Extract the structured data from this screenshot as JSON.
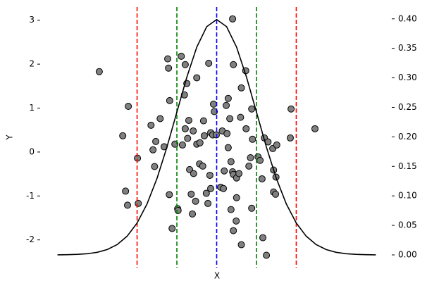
{
  "chart_data": {
    "type": "scatter",
    "xlabel": "X",
    "ylabel": "Y",
    "xlim": [
      -4.4,
      4.4
    ],
    "ylim": [
      -2.63,
      3.3
    ],
    "yticks": [
      -2,
      -1,
      0,
      1,
      2,
      3
    ],
    "y2lim": [
      -0.0215,
      0.42
    ],
    "y2ticks": [
      {
        "value": 0,
        "label": "0.00"
      },
      {
        "value": 0.05,
        "label": "0.05"
      },
      {
        "value": 0.1,
        "label": "0.10"
      },
      {
        "value": 0.15,
        "label": "0.15"
      },
      {
        "value": 0.2,
        "label": "0.20"
      },
      {
        "value": 0.25,
        "label": "0.25"
      },
      {
        "value": 0.3,
        "label": "0.30"
      },
      {
        "value": 0.35,
        "label": "0.35"
      },
      {
        "value": 0.4,
        "label": "0.40"
      }
    ],
    "series": [
      {
        "type": "scatter",
        "color": "#808080",
        "edgecolor": "#000000",
        "x": [
          -2.95,
          -2.22,
          -2.36,
          -1.99,
          -2.29,
          -2.24,
          -1.97,
          -1.65,
          -1.53,
          -1.6,
          -1.42,
          -1.56,
          -1.32,
          -1.23,
          -1.21,
          -1.18,
          -1.19,
          -1.12,
          -0.98,
          -0.97,
          -1.05,
          -0.89,
          -0.79,
          -0.75,
          -0.81,
          -0.86,
          -0.79,
          -0.7,
          -0.73,
          -0.59,
          -0.5,
          -0.68,
          -0.58,
          -0.64,
          -0.53,
          -0.61,
          -0.5,
          -0.43,
          -0.35,
          -0.33,
          -0.31,
          -0.42,
          -0.2,
          -0.15,
          -0.08,
          -0.06,
          -0.17,
          -0.15,
          -0.26,
          -0.22,
          -0.1,
          -0.01,
          0.1,
          0.19,
          0.17,
          0.14,
          0.26,
          0.24,
          0.29,
          0.29,
          0.33,
          0.36,
          0.4,
          0.42,
          0.4,
          0.42,
          0.5,
          0.56,
          0.5,
          0.36,
          0.49,
          0.42,
          0.62,
          0.62,
          0.73,
          0.6,
          0.74,
          0.81,
          0.85,
          0.88,
          0.9,
          0.88,
          1.04,
          1.09,
          1.14,
          1.2,
          1.29,
          1.41,
          1.51,
          1.43,
          1.49,
          1.43,
          1.48,
          1.16,
          1.25,
          1.85,
          1.87,
          2.47
        ],
        "values": [
          1.83,
          1.04,
          0.37,
          -0.14,
          -0.89,
          -1.21,
          -1.17,
          0.61,
          0.24,
          0.05,
          0.76,
          -0.33,
          0.12,
          2.12,
          1.91,
          1.17,
          -0.97,
          -1.74,
          -1.29,
          -1.33,
          0.18,
          2.18,
          1.99,
          1.56,
          1.3,
          0.16,
          0.53,
          0.72,
          0.31,
          0.48,
          0.18,
          -0.4,
          -0.49,
          -0.96,
          -1.12,
          -1.41,
          1.69,
          -0.27,
          -0.32,
          0.71,
          0.37,
          0.21,
          2.02,
          0.44,
          1.09,
          0.92,
          -0.53,
          -0.83,
          -0.94,
          -1.17,
          0.39,
          0.39,
          -0.8,
          -0.43,
          -0.83,
          0.48,
          0.42,
          1.06,
          1.22,
          0.1,
          0.76,
          -0.22,
          3.03,
          1.99,
          -0.45,
          -0.51,
          -0.59,
          -0.49,
          -1.04,
          -1.31,
          -1.57,
          -1.79,
          -2.11,
          1.46,
          1.85,
          0.79,
          0.53,
          -0.32,
          -0.13,
          0.98,
          0.29,
          -1.28,
          -0.11,
          -0.19,
          -0.61,
          0.32,
          0.23,
          0.08,
          0.16,
          -0.41,
          -0.57,
          -0.91,
          -0.96,
          -1.95,
          -2.35,
          0.32,
          0.98,
          0.53
        ]
      },
      {
        "type": "line",
        "axis": "y2",
        "color": "#000000",
        "x": [
          -4,
          -3.75,
          -3.5,
          -3.25,
          -3,
          -2.75,
          -2.5,
          -2.25,
          -2,
          -1.75,
          -1.5,
          -1.25,
          -1,
          -0.75,
          -0.5,
          -0.25,
          0,
          0.25,
          0.5,
          0.75,
          1,
          1.25,
          1.5,
          1.75,
          2,
          2.25,
          2.5,
          2.75,
          3,
          3.25,
          3.5,
          3.75,
          4
        ],
        "values": [
          0.0001,
          0.0004,
          0.0009,
          0.002,
          0.0044,
          0.0091,
          0.0175,
          0.0317,
          0.054,
          0.0863,
          0.1295,
          0.1826,
          0.242,
          0.3011,
          0.3521,
          0.3867,
          0.3989,
          0.3867,
          0.3521,
          0.3011,
          0.242,
          0.1826,
          0.1295,
          0.0863,
          0.054,
          0.0317,
          0.0175,
          0.0091,
          0.0044,
          0.002,
          0.0009,
          0.0004,
          0.0001
        ]
      }
    ],
    "vlines": [
      {
        "x": -2,
        "color": "#ff0000"
      },
      {
        "x": -1,
        "color": "#008000"
      },
      {
        "x": 0,
        "color": "#0000ff"
      },
      {
        "x": 1,
        "color": "#008000"
      },
      {
        "x": 2,
        "color": "#ff0000"
      }
    ]
  }
}
